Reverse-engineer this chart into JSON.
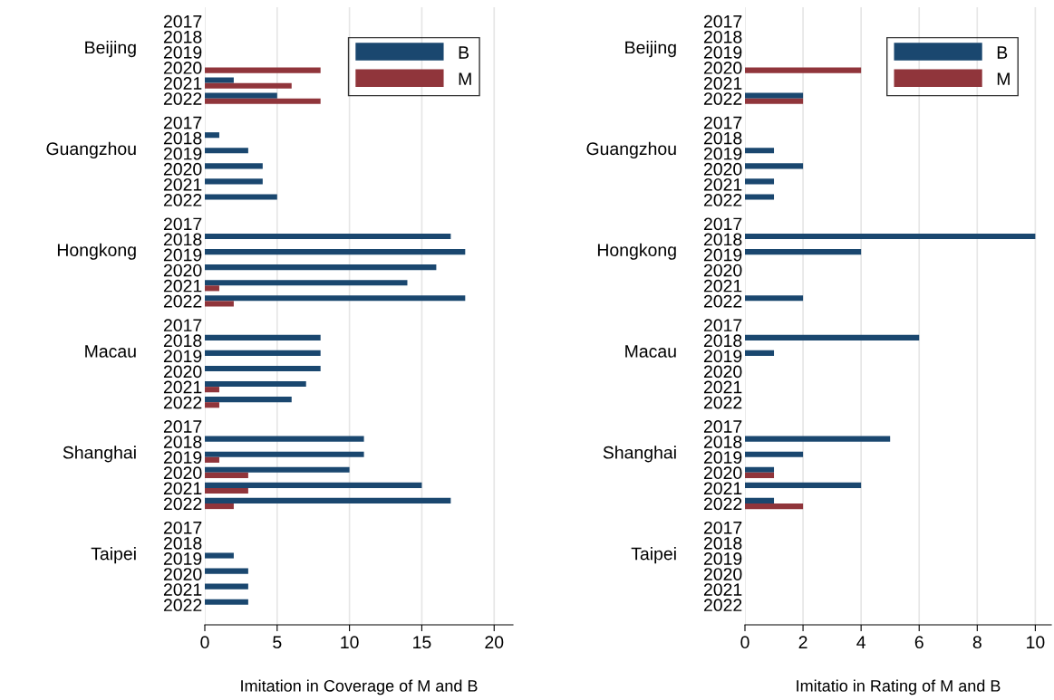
{
  "chart_data": [
    {
      "type": "bar",
      "orientation": "horizontal",
      "xlabel": "Imitation in Coverage of M and B",
      "categories": [
        "2017",
        "2018",
        "2019",
        "2020",
        "2021",
        "2022",
        "2017",
        "2018",
        "2019",
        "2020",
        "2021",
        "2022",
        "2017",
        "2018",
        "2019",
        "2020",
        "2021",
        "2022",
        "2017",
        "2018",
        "2019",
        "2020",
        "2021",
        "2022",
        "2017",
        "2018",
        "2019",
        "2020",
        "2021",
        "2022",
        "2017",
        "2018",
        "2019",
        "2020",
        "2021",
        "2022"
      ],
      "annotations": [
        "Beijing",
        "Guangzhou",
        "Hongkong",
        "Macau",
        "Shanghai",
        "Taipei"
      ],
      "series": [
        {
          "name": "B",
          "color": "#1a476f",
          "values": [
            0,
            0,
            0,
            0,
            2,
            5,
            0,
            1,
            3,
            4,
            4,
            5,
            0,
            17,
            18,
            16,
            14,
            18,
            0,
            8,
            8,
            8,
            7,
            6,
            0,
            11,
            11,
            10,
            15,
            17,
            0,
            0,
            2,
            3,
            3,
            3
          ]
        },
        {
          "name": "M",
          "color": "#90353b",
          "values": [
            0,
            0,
            0,
            8,
            6,
            8,
            0,
            0,
            0,
            0,
            0,
            0,
            0,
            0,
            0,
            0,
            1,
            2,
            0,
            0,
            0,
            0,
            1,
            1,
            0,
            0,
            1,
            3,
            3,
            2,
            0,
            0,
            0,
            0,
            0,
            0
          ]
        }
      ],
      "xlim": [
        0,
        21.3
      ],
      "xticks": [
        0,
        5,
        10,
        15,
        20
      ],
      "grid": "x",
      "legend": "top right"
    },
    {
      "type": "bar",
      "orientation": "horizontal",
      "xlabel": "Imitatio in Rating of M and B",
      "categories": [
        "2017",
        "2018",
        "2019",
        "2020",
        "2021",
        "2022",
        "2017",
        "2018",
        "2019",
        "2020",
        "2021",
        "2022",
        "2017",
        "2018",
        "2019",
        "2020",
        "2021",
        "2022",
        "2017",
        "2018",
        "2019",
        "2020",
        "2021",
        "2022",
        "2017",
        "2018",
        "2019",
        "2020",
        "2021",
        "2022",
        "2017",
        "2018",
        "2019",
        "2020",
        "2021",
        "2022"
      ],
      "annotations": [
        "Beijing",
        "Guangzhou",
        "Hongkong",
        "Macau",
        "Shanghai",
        "Taipei"
      ],
      "series": [
        {
          "name": "B",
          "color": "#1a476f",
          "values": [
            0,
            0,
            0,
            0,
            0,
            2,
            0,
            0,
            1,
            2,
            1,
            1,
            0,
            10,
            4,
            0,
            0,
            2,
            0,
            6,
            1,
            0,
            0,
            0,
            0,
            5,
            2,
            1,
            4,
            1,
            0,
            0,
            0,
            0,
            0,
            0
          ]
        },
        {
          "name": "M",
          "color": "#90353b",
          "values": [
            0,
            0,
            0,
            4,
            0,
            2,
            0,
            0,
            0,
            0,
            0,
            0,
            0,
            0,
            0,
            0,
            0,
            0,
            0,
            0,
            0,
            0,
            0,
            0,
            0,
            0,
            0,
            1,
            0,
            2,
            0,
            0,
            0,
            0,
            0,
            0
          ]
        }
      ],
      "xlim": [
        0,
        10.55
      ],
      "xticks": [
        0,
        2,
        4,
        6,
        8,
        10
      ],
      "grid": "x",
      "legend": "top right"
    }
  ]
}
